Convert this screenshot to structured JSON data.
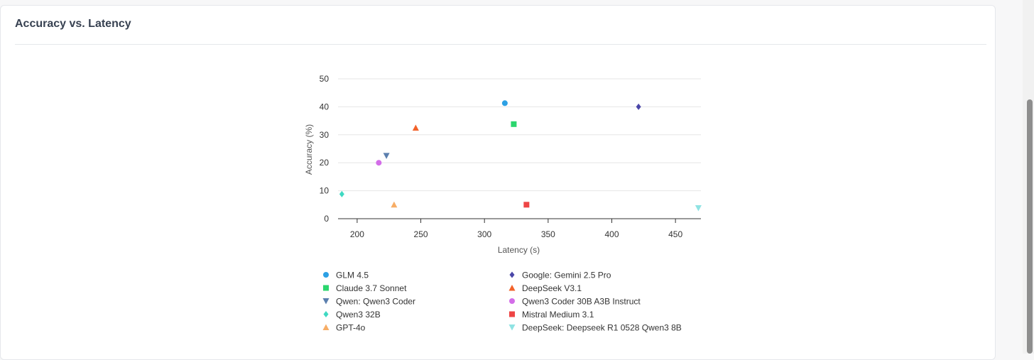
{
  "card": {
    "title": "Accuracy vs. Latency"
  },
  "colors": {
    "card_bg": "#ffffff",
    "grid": "#e6e6e6",
    "axis": "#333333"
  },
  "chart_data": {
    "type": "scatter",
    "title": "Accuracy vs. Latency",
    "xlabel": "Latency (s)",
    "ylabel": "Accuracy (%)",
    "xlim": [
      185,
      470
    ],
    "ylim": [
      0,
      50
    ],
    "xticks": [
      200,
      250,
      300,
      350,
      400,
      450
    ],
    "yticks": [
      0,
      10,
      20,
      30,
      40,
      50
    ],
    "grid": "horizontal",
    "legend_position": "bottom",
    "series": [
      {
        "name": "GLM 4.5",
        "x": 316,
        "y": 41.3,
        "marker": "circle",
        "color": "#2ca0e4"
      },
      {
        "name": "Google: Gemini 2.5 Pro",
        "x": 421,
        "y": 40,
        "marker": "diamond",
        "color": "#4a46a8"
      },
      {
        "name": "Claude 3.7 Sonnet",
        "x": 323,
        "y": 33.8,
        "marker": "square",
        "color": "#2bd66e"
      },
      {
        "name": "DeepSeek V3.1",
        "x": 246,
        "y": 32.5,
        "marker": "triangle-up",
        "color": "#f2622a"
      },
      {
        "name": "Qwen: Qwen3 Coder",
        "x": 223,
        "y": 22.5,
        "marker": "triangle-down",
        "color": "#5b7fae"
      },
      {
        "name": "Qwen3 Coder 30B A3B Instruct",
        "x": 217,
        "y": 20,
        "marker": "circle",
        "color": "#d36de8"
      },
      {
        "name": "Qwen3 32B",
        "x": 188,
        "y": 8.8,
        "marker": "diamond",
        "color": "#3fd9c2"
      },
      {
        "name": "Mistral Medium 3.1",
        "x": 333,
        "y": 5,
        "marker": "square",
        "color": "#ee4545"
      },
      {
        "name": "GPT-4o",
        "x": 229,
        "y": 5,
        "marker": "triangle-up",
        "color": "#f7ad66"
      },
      {
        "name": "DeepSeek: Deepseek R1 0528 Qwen3 8B",
        "x": 468,
        "y": 3.8,
        "marker": "triangle-down",
        "color": "#8fe3e3"
      }
    ]
  }
}
